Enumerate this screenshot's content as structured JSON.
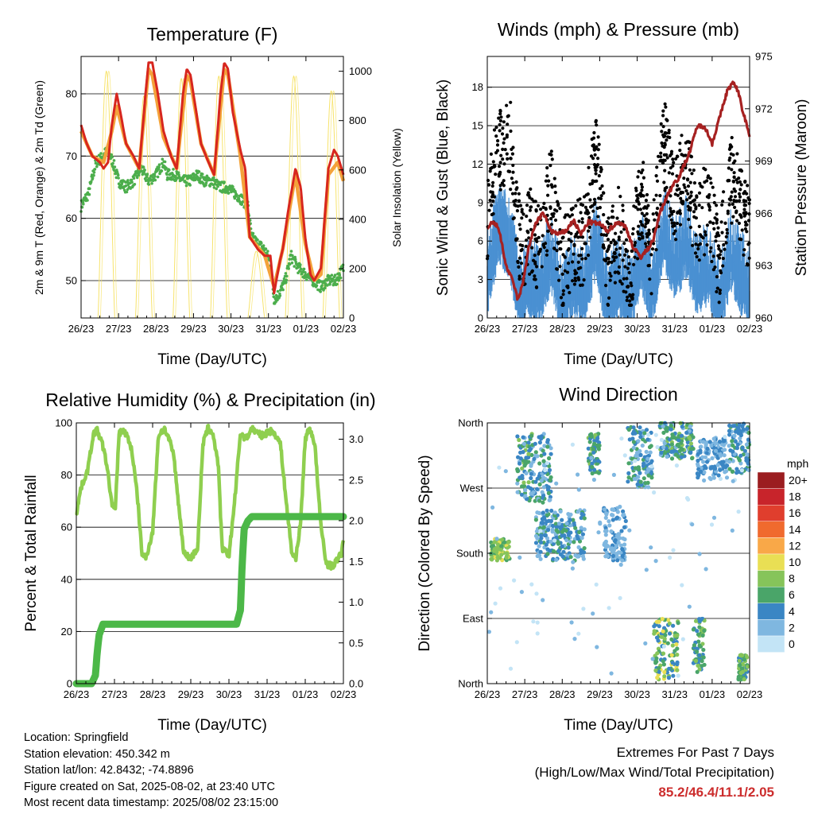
{
  "chart_data": [
    {
      "type": "line",
      "title": "Temperature (F)",
      "xlabel": "Time (Day/UTC)",
      "ylabel": "2m & 9m T (Red, Orange) & 2m Td (Green)",
      "ylabel_right": "Solar Insolation (Yellow)",
      "x_ticks": [
        "26/23",
        "27/23",
        "28/23",
        "29/23",
        "30/23",
        "31/23",
        "01/23",
        "02/23"
      ],
      "xlim": [
        0,
        7
      ],
      "ylim": [
        44,
        86
      ],
      "ylim_right": [
        0,
        1060
      ],
      "y_ticks": [
        50,
        60,
        70,
        80
      ],
      "y_ticks_right": [
        0,
        200,
        400,
        600,
        800,
        1000
      ],
      "colors": {
        "t2m": "#d7261e",
        "t9m": "#f4a23a",
        "td": "#4cae4c",
        "solar": "#f7e36b"
      },
      "series": [
        {
          "key": "t2m",
          "x": [
            0,
            0.15,
            0.3,
            0.5,
            0.6,
            0.72,
            0.82,
            0.95,
            1.05,
            1.2,
            1.4,
            1.55,
            1.72,
            1.8,
            1.9,
            2.05,
            2.2,
            2.4,
            2.55,
            2.72,
            2.82,
            2.92,
            3.05,
            3.2,
            3.4,
            3.55,
            3.72,
            3.82,
            3.92,
            4.05,
            4.25,
            4.38,
            4.5,
            4.72,
            4.9,
            5.05,
            5.15,
            5.3,
            5.38,
            5.52,
            5.72,
            5.86,
            5.98,
            6.12,
            6.22,
            6.4,
            6.6,
            6.75,
            6.85,
            7
          ],
          "y": [
            75,
            72,
            70,
            69,
            68,
            69,
            75,
            80,
            77,
            72,
            70,
            68,
            80,
            85,
            85,
            80,
            74,
            70,
            68,
            80,
            84,
            83,
            78,
            72,
            69,
            67,
            80,
            85,
            84,
            77,
            71,
            68,
            57,
            55,
            54,
            54,
            48,
            53,
            55,
            61,
            68,
            65,
            57,
            51,
            50,
            52,
            68,
            71,
            70,
            67
          ]
        },
        {
          "key": "t9m",
          "x": [
            0,
            0.3,
            0.6,
            0.82,
            0.95,
            1.2,
            1.55,
            1.8,
            1.9,
            2.2,
            2.55,
            2.82,
            2.92,
            3.2,
            3.55,
            3.82,
            3.92,
            4.25,
            4.5,
            4.9,
            5.15,
            5.38,
            5.52,
            5.72,
            5.98,
            6.22,
            6.4,
            6.6,
            6.85,
            7
          ],
          "y": [
            74,
            70,
            69,
            74,
            78,
            72,
            68,
            84,
            83,
            73,
            68,
            83,
            82,
            72,
            67,
            84,
            83,
            70,
            57,
            54,
            49,
            55,
            60,
            67,
            56,
            50,
            51,
            67,
            69,
            66
          ]
        },
        {
          "key": "td",
          "x": [
            0,
            0.2,
            0.4,
            0.6,
            0.7,
            0.85,
            1,
            1.2,
            1.4,
            1.6,
            1.8,
            2,
            2.2,
            2.3,
            2.5,
            2.7,
            2.9,
            3.1,
            3.3,
            3.5,
            3.7,
            3.9,
            4.1,
            4.3,
            4.45,
            4.55,
            4.7,
            4.9,
            5.05,
            5.15,
            5.3,
            5.45,
            5.6,
            5.8,
            6,
            6.2,
            6.4,
            6.6,
            6.8,
            7
          ],
          "y": [
            62,
            64,
            69,
            70,
            71,
            69,
            66,
            65,
            66,
            68,
            66,
            67,
            69,
            67,
            67,
            66,
            66,
            67,
            66,
            66,
            65,
            65,
            64,
            63,
            62,
            57,
            56,
            55,
            53,
            47,
            48,
            50,
            54,
            52,
            51,
            50,
            49,
            50,
            50,
            52
          ]
        },
        {
          "key": "solar",
          "days": 7,
          "sunrise": 0.45,
          "sunset": 0.9,
          "peaks": [
            1000,
            900,
            970,
            980,
            270,
            980,
            920
          ]
        }
      ]
    },
    {
      "type": "scatter",
      "title": "Winds (mph) & Pressure (mb)",
      "xlabel": "Time (Day/UTC)",
      "ylabel": "Sonic Wind & Gust (Blue, Black)",
      "ylabel_right": "Station Pressure (Maroon)",
      "x_ticks": [
        "26/23",
        "27/23",
        "28/23",
        "29/23",
        "30/23",
        "31/23",
        "01/23",
        "02/23"
      ],
      "xlim": [
        0,
        7
      ],
      "ylim": [
        0,
        20.4
      ],
      "ylim_right": [
        960,
        975
      ],
      "y_ticks": [
        0,
        3,
        6,
        9,
        12,
        15,
        18
      ],
      "y_ticks_right": [
        960,
        963,
        966,
        969,
        972,
        975
      ],
      "colors": {
        "wind": "#4a90d2",
        "gust": "#000000",
        "pressure": "#a62121"
      },
      "pressure": {
        "x": [
          0,
          0.12,
          0.3,
          0.5,
          0.7,
          0.82,
          0.95,
          1.1,
          1.3,
          1.5,
          1.7,
          1.9,
          2.1,
          2.3,
          2.5,
          2.7,
          3,
          3.2,
          3.5,
          3.7,
          3.9,
          4.1,
          4.3,
          4.45,
          4.6,
          4.8,
          5,
          5.1,
          5.2,
          5.4,
          5.6,
          5.8,
          6,
          6.2,
          6.4,
          6.55,
          6.7,
          6.8,
          7
        ],
        "y": [
          965,
          965.5,
          965.2,
          963,
          962,
          961,
          962,
          964,
          965.5,
          966,
          965,
          964.8,
          965,
          965.6,
          964.8,
          965.5,
          965.4,
          965,
          965.5,
          965.2,
          964,
          963.5,
          964,
          964.6,
          966,
          967,
          967.8,
          968,
          968.5,
          969.5,
          971,
          971,
          970,
          971.5,
          973,
          973.5,
          973,
          972,
          970.5
        ]
      },
      "wind_profile": {
        "x": [
          0,
          0.3,
          0.6,
          0.9,
          1.1,
          1.4,
          1.7,
          2,
          2.3,
          2.6,
          2.9,
          3.2,
          3.5,
          3.8,
          4.1,
          4.4,
          4.7,
          5,
          5.3,
          5.6,
          5.9,
          6.2,
          6.5,
          6.8,
          7
        ],
        "y": [
          4,
          8,
          7,
          2,
          4,
          3,
          6,
          2,
          4,
          3,
          7,
          2,
          4,
          2,
          6,
          3,
          8,
          5,
          7,
          4,
          5,
          2,
          6,
          4,
          3
        ]
      },
      "gust_profile": {
        "x": [
          0,
          0.3,
          0.6,
          0.9,
          1.1,
          1.4,
          1.7,
          2,
          2.3,
          2.6,
          2.9,
          3.2,
          3.5,
          3.8,
          4.1,
          4.4,
          4.7,
          5,
          5.3,
          5.6,
          5.9,
          6.2,
          6.5,
          6.8,
          7
        ],
        "y": [
          8,
          13,
          14,
          5,
          7,
          5,
          10,
          4,
          6,
          6,
          13,
          4,
          7,
          3,
          10,
          5,
          14,
          9,
          12,
          7,
          9,
          4,
          11,
          9,
          6
        ]
      }
    },
    {
      "type": "line",
      "title": "Relative Humidity (%) & Precipitation (in)",
      "xlabel": "Time (Day/UTC)",
      "ylabel": "Percent & Total Rainfall",
      "x_ticks": [
        "26/23",
        "27/23",
        "28/23",
        "29/23",
        "30/23",
        "31/23",
        "01/23",
        "02/23"
      ],
      "xlim": [
        0,
        7
      ],
      "ylim": [
        0,
        100
      ],
      "ylim_right": [
        0,
        3.2
      ],
      "y_ticks": [
        0,
        20,
        40,
        60,
        80,
        100
      ],
      "y_ticks_right": [
        0.0,
        0.5,
        1.0,
        1.5,
        2.0,
        2.5,
        3.0
      ],
      "colors": {
        "rh": "#8fcf4f",
        "precip": "#4cb848"
      },
      "series": [
        {
          "key": "rh",
          "x": [
            0,
            0.12,
            0.3,
            0.45,
            0.55,
            0.68,
            0.8,
            0.92,
            1.02,
            1.12,
            1.2,
            1.3,
            1.45,
            1.6,
            1.72,
            1.82,
            2,
            2.15,
            2.3,
            2.42,
            2.55,
            2.7,
            2.82,
            3,
            3.18,
            3.32,
            3.45,
            3.58,
            3.72,
            3.82,
            4,
            4.15,
            4.3,
            4.45,
            4.6,
            4.75,
            4.9,
            5.05,
            5.2,
            5.35,
            5.5,
            5.65,
            5.75,
            5.88,
            6,
            6.12,
            6.25,
            6.4,
            6.55,
            6.7,
            6.82,
            6.95,
            7
          ],
          "y": [
            65,
            75,
            82,
            96,
            97,
            92,
            84,
            70,
            66,
            96,
            97,
            96,
            90,
            72,
            50,
            48,
            58,
            95,
            98,
            94,
            88,
            66,
            50,
            48,
            52,
            92,
            98,
            96,
            84,
            52,
            49,
            70,
            96,
            94,
            98,
            96,
            95,
            97,
            96,
            92,
            70,
            50,
            48,
            62,
            94,
            98,
            92,
            62,
            46,
            45,
            47,
            50,
            56
          ]
        },
        {
          "key": "precip",
          "x": [
            0,
            0.4,
            0.5,
            0.55,
            0.6,
            0.7,
            1,
            2,
            3,
            4,
            4.2,
            4.3,
            4.35,
            4.4,
            4.5,
            4.6,
            5,
            6,
            7
          ],
          "y": [
            0,
            0,
            0.1,
            0.4,
            0.6,
            0.73,
            0.73,
            0.73,
            0.73,
            0.73,
            0.73,
            0.9,
            1.5,
            1.9,
            2.0,
            2.05,
            2.05,
            2.05,
            2.05
          ]
        }
      ]
    },
    {
      "type": "scatter",
      "title": "Wind Direction",
      "xlabel": "Time (Day/UTC)",
      "ylabel": "Direction (Colored By Speed)",
      "x_ticks": [
        "26/23",
        "27/23",
        "28/23",
        "29/23",
        "30/23",
        "31/23",
        "01/23",
        "02/23"
      ],
      "xlim": [
        0,
        7
      ],
      "ylim": [
        0,
        360
      ],
      "y_ticks": [
        "North",
        "East",
        "South",
        "West",
        "North"
      ],
      "legend": {
        "title": "mph",
        "labels": [
          "20+",
          "18",
          "16",
          "14",
          "12",
          "10",
          "8",
          "6",
          "4",
          "2",
          "0"
        ],
        "colors": [
          "#9b1d20",
          "#c8242b",
          "#e03e2d",
          "#f06a2e",
          "#f9a848",
          "#e9df54",
          "#86c45a",
          "#4aa569",
          "#3a86c4",
          "#7fb7e0",
          "#c3e4f6"
        ]
      },
      "clusters": [
        {
          "x": [
            0.1,
            0.6
          ],
          "y": [
            170,
            200
          ],
          "speed": [
            6,
            10
          ]
        },
        {
          "x": [
            0.8,
            1.2
          ],
          "y": [
            250,
            350
          ],
          "speed": [
            2,
            8
          ]
        },
        {
          "x": [
            1.15,
            1.7
          ],
          "y": [
            250,
            345
          ],
          "speed": [
            2,
            6
          ]
        },
        {
          "x": [
            1.3,
            2.6
          ],
          "y": [
            170,
            240
          ],
          "speed": [
            1,
            6
          ]
        },
        {
          "x": [
            2.7,
            3.0
          ],
          "y": [
            290,
            345
          ],
          "speed": [
            3,
            8
          ]
        },
        {
          "x": [
            3.1,
            3.7
          ],
          "y": [
            170,
            245
          ],
          "speed": [
            1,
            4
          ]
        },
        {
          "x": [
            3.75,
            4.4
          ],
          "y": [
            270,
            355
          ],
          "speed": [
            2,
            7
          ]
        },
        {
          "x": [
            4.6,
            5.5
          ],
          "y": [
            310,
            360
          ],
          "speed": [
            2,
            8
          ]
        },
        {
          "x": [
            4.45,
            5.1
          ],
          "y": [
            5,
            90
          ],
          "speed": [
            3,
            10
          ]
        },
        {
          "x": [
            5.5,
            5.8
          ],
          "y": [
            15,
            90
          ],
          "speed": [
            3,
            9
          ]
        },
        {
          "x": [
            5.6,
            6.4
          ],
          "y": [
            280,
            340
          ],
          "speed": [
            1,
            5
          ]
        },
        {
          "x": [
            6.45,
            7.0
          ],
          "y": [
            290,
            360
          ],
          "speed": [
            2,
            6
          ]
        },
        {
          "x": [
            6.7,
            6.95
          ],
          "y": [
            5,
            40
          ],
          "speed": [
            4,
            9
          ]
        },
        {
          "x": [
            0.0,
            7.0
          ],
          "y": [
            0,
            360
          ],
          "speed": [
            0,
            2
          ],
          "sparse": true
        }
      ]
    }
  ],
  "info": {
    "location": "Location: Springfield",
    "elevation": "Station elevation: 450.342 m",
    "latlon": "Station lat/lon: 42.8432; -74.8896",
    "created": "Figure created on Sat, 2025-08-02, at 23:40 UTC",
    "recent": "Most recent data timestamp: 2025/08/02 23:15:00"
  },
  "extremes": {
    "line1": "Extremes For Past 7 Days",
    "line2": "(High/Low/Max Wind/Total Precipitation)",
    "values": "85.2/46.4/11.1/2.05"
  }
}
